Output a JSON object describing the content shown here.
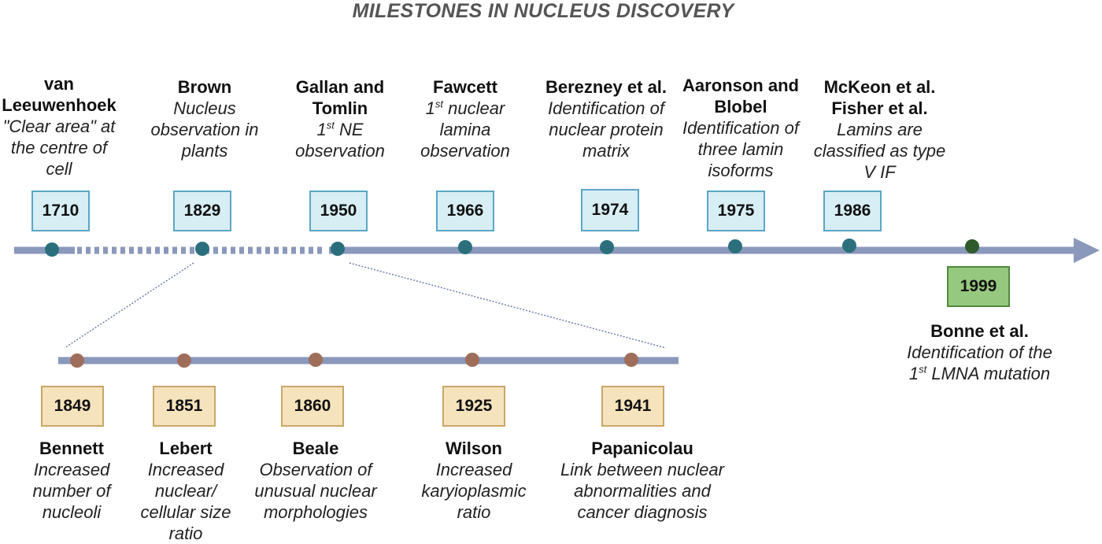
{
  "title": "MILESTONES IN NUCLEUS DISCOVERY",
  "colors": {
    "timeline": "#8a98bb",
    "dot_main": "#2b6f7d",
    "dot_sub": "#9e6e5b",
    "dot_final": "#2f5a2c",
    "box_blue_fill": "#d7eef4",
    "box_tan_fill": "#f5e3bd",
    "box_green_fill": "#96c87f"
  },
  "main_events": [
    {
      "year": "1710",
      "name": "van Leeuwenhoek",
      "desc": "\"Clear area\" at the centre of cell"
    },
    {
      "year": "1829",
      "name": "Brown",
      "desc": "Nucleus observation in plants"
    },
    {
      "year": "1950",
      "name": "Gallan and Tomlin",
      "desc_pre": "1",
      "desc_sup": "st",
      "desc_post": " NE observation"
    },
    {
      "year": "1966",
      "name": "Fawcett",
      "desc_pre": "1",
      "desc_sup": "st",
      "desc_post": " nuclear lamina observation"
    },
    {
      "year": "1974",
      "name": "Berezney et al.",
      "desc": "Identification of nuclear protein matrix"
    },
    {
      "year": "1975",
      "name": "Aaronson and Blobel",
      "desc": "Identification of three lamin isoforms"
    },
    {
      "year": "1986",
      "name": "McKeon et al. Fisher et al.",
      "desc": "Lamins are classified as type V IF"
    },
    {
      "year": "1999",
      "name": "Bonne et al.",
      "desc_pre": "Identification of the 1",
      "desc_sup": "st",
      "desc_post": " LMNA mutation"
    }
  ],
  "sub_events": [
    {
      "year": "1849",
      "name": "Bennett",
      "desc": "Increased number of nucleoli"
    },
    {
      "year": "1851",
      "name": "Lebert",
      "desc": "Increased nuclear/ cellular size ratio"
    },
    {
      "year": "1860",
      "name": "Beale",
      "desc": "Observation of unusual nuclear morphologies"
    },
    {
      "year": "1925",
      "name": "Wilson",
      "desc": "Increased karyioplasmic ratio"
    },
    {
      "year": "1941",
      "name": "Papanicolau",
      "desc": "Link between nuclear abnormalities and cancer diagnosis"
    }
  ]
}
